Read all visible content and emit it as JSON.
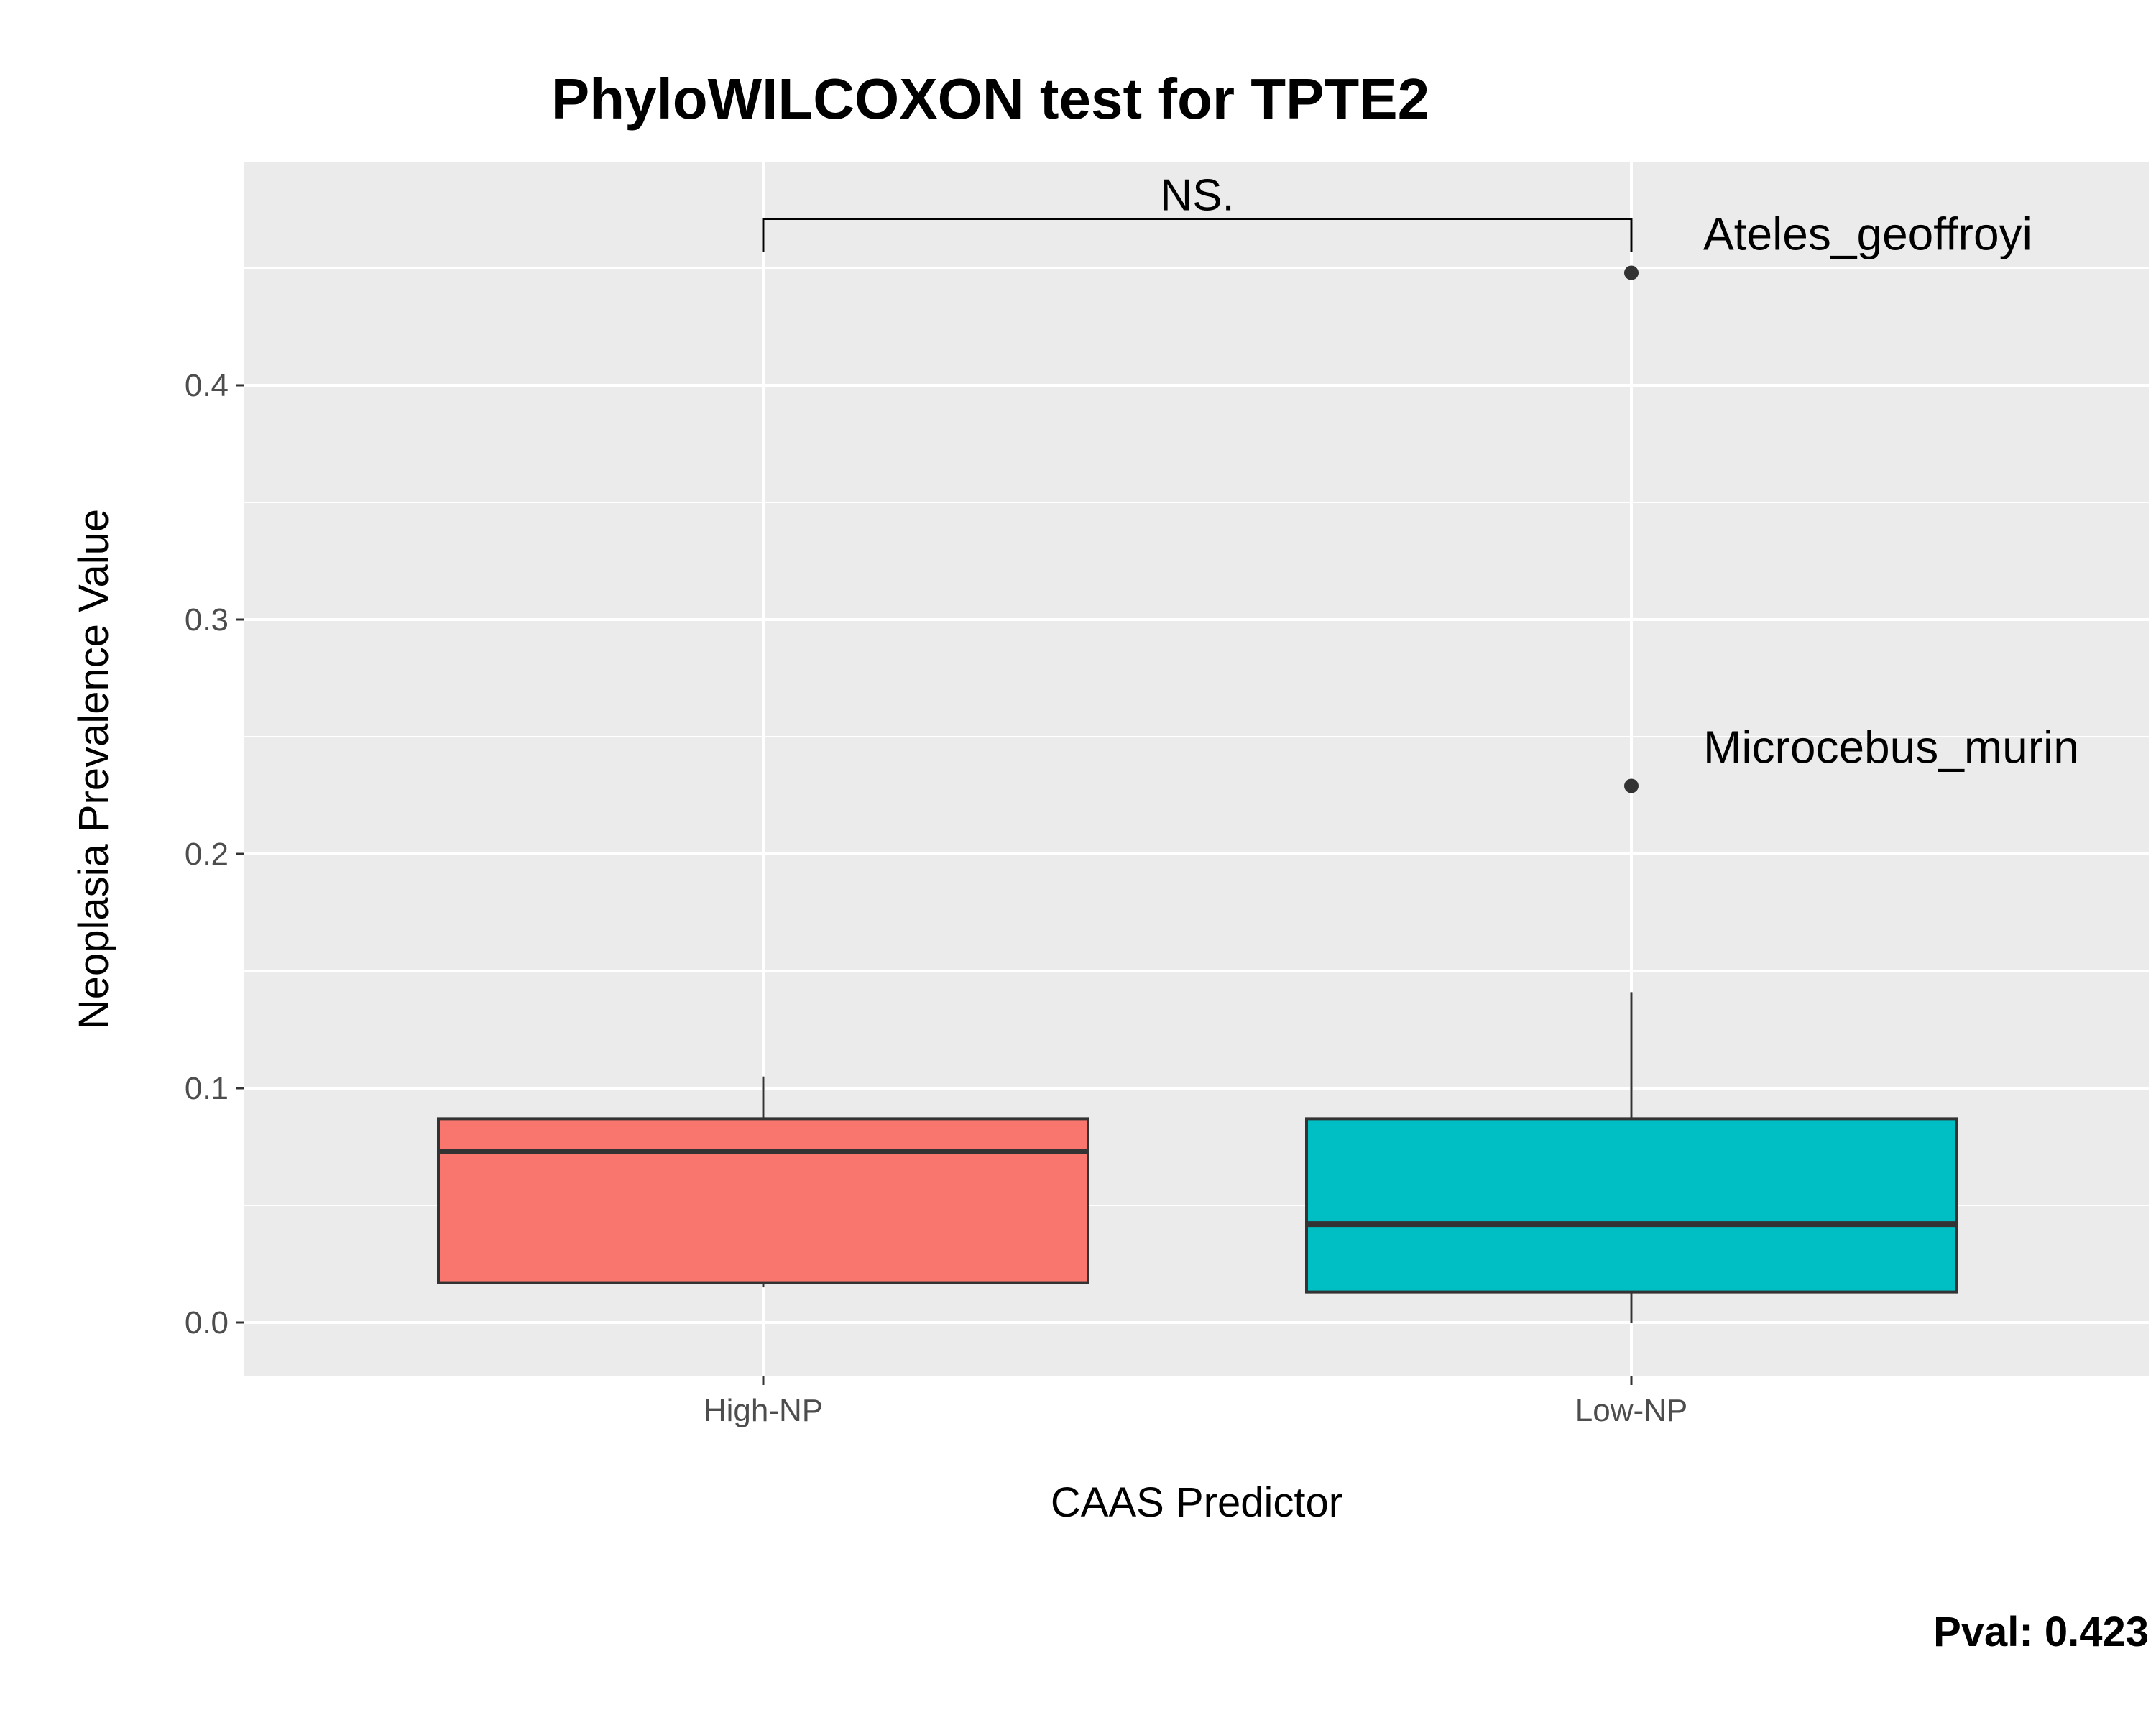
{
  "chart_data": {
    "type": "box",
    "title": "PhyloWILCOXON test for TPTE2",
    "xlabel": "CAAS Predictor",
    "ylabel": "Neoplasia Prevalence Value",
    "ylim": [
      -0.024,
      0.494
    ],
    "yticks": [
      0.0,
      0.1,
      0.2,
      0.3,
      0.4
    ],
    "ytick_labels": [
      "0.0",
      "0.1",
      "0.2",
      "0.3",
      "0.4"
    ],
    "categories": [
      "High-NP",
      "Low-NP"
    ],
    "boxes": [
      {
        "category": "High-NP",
        "whisker_low": 0.015,
        "q1": 0.017,
        "median": 0.073,
        "q3": 0.087,
        "whisker_high": 0.105,
        "fill": "#F8766D"
      },
      {
        "category": "Low-NP",
        "whisker_low": 0.0,
        "q1": 0.013,
        "median": 0.042,
        "q3": 0.087,
        "whisker_high": 0.141,
        "fill": "#00BFC4"
      }
    ],
    "outliers": [
      {
        "category": "Low-NP",
        "y": 0.448,
        "label": "Ateles_geoffroyi"
      },
      {
        "category": "Low-NP",
        "y": 0.229,
        "label": "Microcebus_murin"
      }
    ],
    "significance": {
      "label": "NS.",
      "from": "High-NP",
      "to": "Low-NP",
      "y": 0.471,
      "tip_y": 0.457
    },
    "pval_label": "Pval:  0.423",
    "grid": true,
    "legend": "none"
  },
  "colors": {
    "panel_bg": "#EBEBEB",
    "grid": "#FFFFFF",
    "box_line": "#333333"
  }
}
